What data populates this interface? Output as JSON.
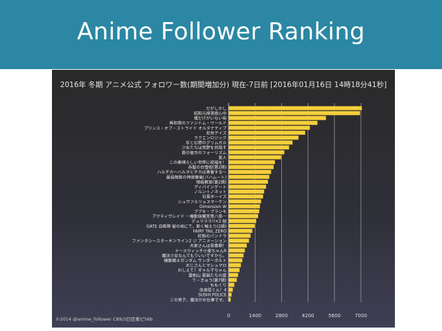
{
  "slide": {
    "title": "Anime Follower Ranking"
  },
  "credit": "©2014 @anime_follower C89/3日目東ピ56b",
  "chart_data": {
    "type": "bar",
    "orientation": "horizontal",
    "title": "2016年 冬期 アニメ公式 フォロワー数(期間増加分) 現在-7日前 [2016年01月16日 14時18分41秒]",
    "xlim": [
      0,
      7900
    ],
    "xticks": [
      0,
      1400,
      2800,
      4200,
      5600,
      7000
    ],
    "grid": true,
    "bar_color": "#f5cf3c",
    "categories": [
      "だがしかし",
      "昭和元禄落語心中",
      "僕だけがいない街",
      "無彩限のファントム・ワールド",
      "プリンス・オブ・ストライド オルタナティブ",
      "虹色デイズ",
      "ラクエンロジック",
      "灰と幻想のグリムガル",
      "少女たちは荒野を目指す",
      "蒼の彼方のフォーリズム",
      "亜人",
      "この素晴らしい世界に祝福を！",
      "赤髪の白雪姫(第2期)",
      "ハルチカ～ハルタとチカは青春する～",
      "最弱無敗の神装機竜(バハムート)",
      "暗殺教室(第2期)",
      "ディバインゲート",
      "ノルン＋ノネット",
      "石膏ボーイズ",
      "シュヴァルツェスマーケン",
      "Dimension W",
      "ブブキ・ブランキ",
      "アクティヴレイド －機動強襲室第八係－",
      "デュラララ!!×2 結",
      "GATE 自衛隊 彼の地にて、斯く戦えり(2期)",
      "FAIRY TAIL ZERO",
      "紅殻のパンドラ",
      "ファンタシースターオンライン2 ジ アニメーション",
      "大家さんは思春期！",
      "ナースウィッチ小麦ちゃんR",
      "魔法少女なんてもういいですから。",
      "機動戦士ガンダム サンダーボルト",
      "おじさんとマシュマロ",
      "おしえて！ギャル子ちゃん",
      "霊剣山 星屑たちの宴",
      "て－きゅう(第7期)",
      "ももくり",
      "血液型くん！4",
      "SUSHI POLICE",
      "この男子、魔法がお仕事です。"
    ],
    "values": [
      7050,
      6950,
      5150,
      4700,
      4300,
      4050,
      3700,
      3380,
      3200,
      2950,
      2780,
      2450,
      2380,
      2250,
      2150,
      2080,
      1980,
      1880,
      1820,
      1720,
      1660,
      1620,
      1560,
      1460,
      1380,
      1260,
      1160,
      1080,
      960,
      860,
      790,
      720,
      650,
      580,
      500,
      430,
      300,
      220,
      160,
      110
    ]
  }
}
